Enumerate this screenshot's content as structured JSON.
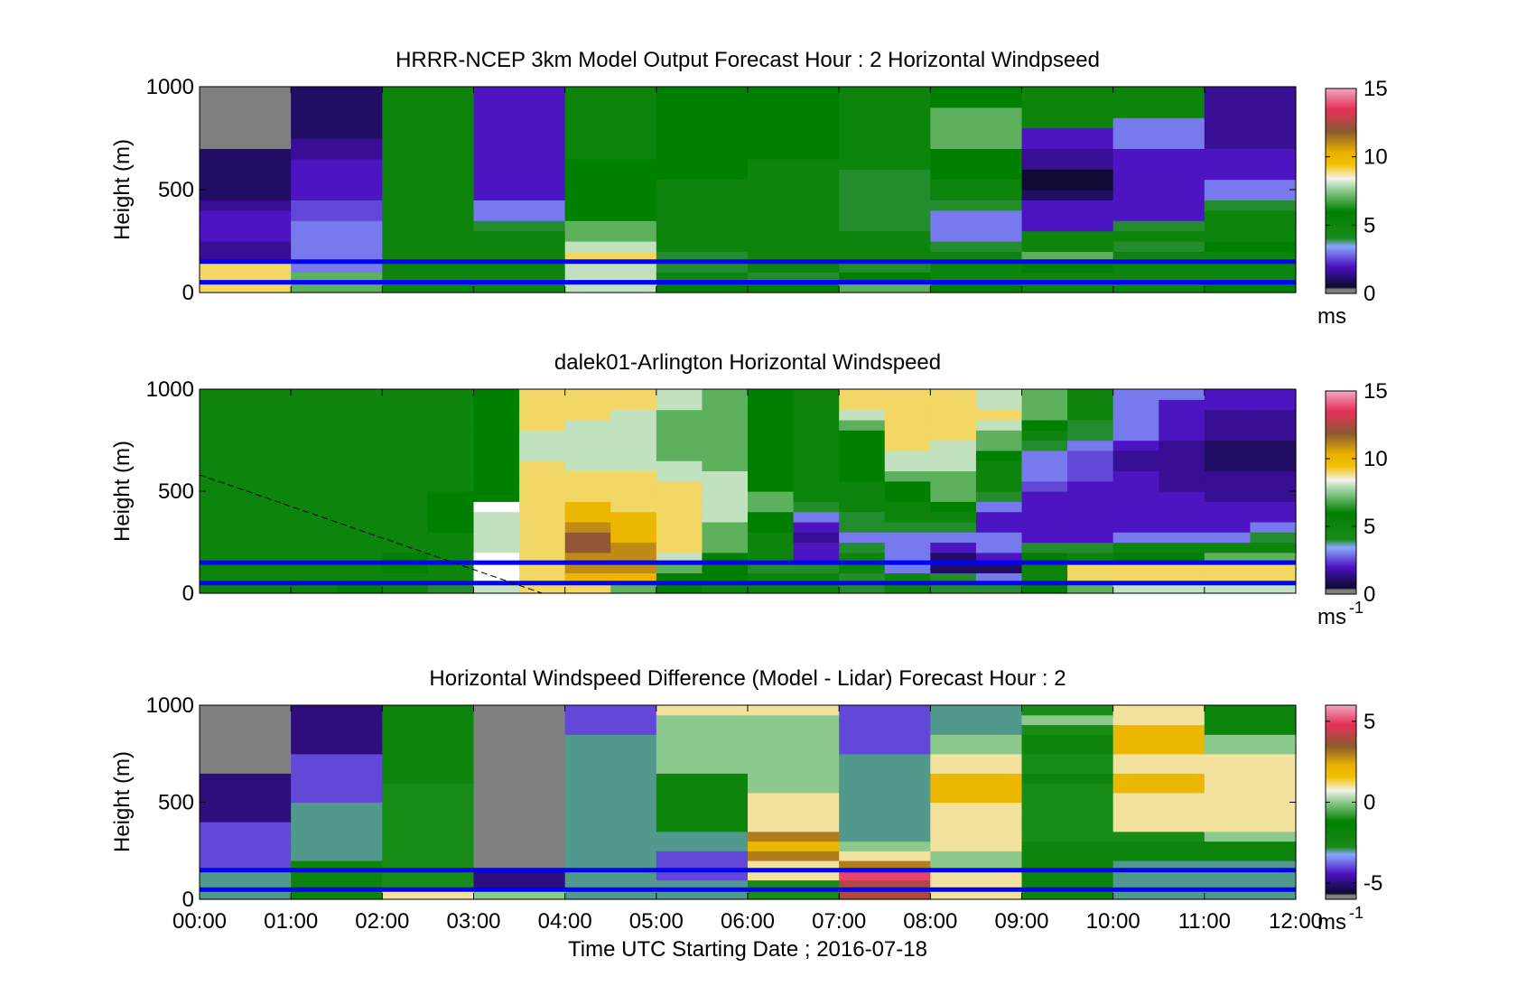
{
  "chart_data": [
    {
      "type": "heatmap",
      "title": "HRRR-NCEP 3km Model Output   Forecast Hour : 2 Horizontal Windpseed",
      "ylabel": "Height (m)",
      "ylim": [
        0,
        1000
      ],
      "yticks": [
        "0",
        "500",
        "1000"
      ],
      "colorbar": {
        "ticks": [
          "0",
          "5",
          "10",
          "15"
        ],
        "unit": "ms",
        "range": [
          0,
          15
        ]
      },
      "overlay_lines": {
        "heights": [
          150,
          50
        ],
        "color": "#0000ff"
      },
      "dashed_line": null,
      "heights": [
        25,
        75,
        125,
        175,
        225,
        275,
        325,
        375,
        425,
        475,
        525,
        575,
        625,
        675,
        725,
        775,
        825,
        875,
        925,
        975
      ],
      "times": [
        "00:00",
        "01:00",
        "02:00",
        "03:00",
        "04:00",
        "05:00",
        "06:00",
        "07:00",
        "08:00",
        "09:00",
        "10:00",
        "11:00"
      ],
      "values": [
        [
          9,
          7,
          5,
          5,
          8,
          6,
          6,
          7,
          6,
          5,
          5,
          6
        ],
        [
          9,
          7,
          5,
          5,
          8,
          5,
          4,
          6,
          5,
          5,
          5,
          5
        ],
        [
          9,
          3,
          5,
          5,
          8,
          4,
          5,
          4,
          5,
          6,
          5,
          5
        ],
        [
          1.5,
          3,
          5,
          5,
          9,
          4,
          5,
          5,
          5,
          7,
          5,
          5
        ],
        [
          1.5,
          3,
          5,
          5,
          8,
          5,
          5,
          5,
          4,
          5,
          4,
          6
        ],
        [
          2,
          3,
          5,
          5,
          7,
          5,
          5,
          5,
          3,
          5,
          5,
          5
        ],
        [
          2,
          3,
          5,
          4,
          7,
          5,
          5,
          4,
          3,
          2,
          4,
          5
        ],
        [
          2,
          2.5,
          5,
          3,
          6,
          5,
          5,
          4,
          3,
          2,
          2,
          5
        ],
        [
          1.5,
          2.5,
          5,
          3,
          6,
          5,
          5,
          4,
          4,
          2,
          2,
          4
        ],
        [
          1,
          2,
          5,
          2,
          6,
          5,
          5,
          4,
          5,
          1,
          2,
          3
        ],
        [
          1,
          2,
          5,
          2,
          6,
          5,
          5,
          4,
          5,
          0.5,
          2,
          3
        ],
        [
          1,
          2,
          5,
          2,
          6,
          6,
          5,
          4,
          6,
          0.5,
          2,
          2
        ],
        [
          1,
          2,
          5,
          2,
          6,
          6,
          5,
          5,
          6,
          1.5,
          2,
          2
        ],
        [
          1,
          1.5,
          5,
          2,
          5,
          6,
          6,
          5,
          6,
          1.5,
          2,
          2
        ],
        [
          -1,
          1.5,
          5,
          2,
          5,
          6,
          6,
          5,
          7,
          2,
          3,
          1.5
        ],
        [
          -1,
          1,
          5,
          2,
          5,
          6,
          6,
          5,
          7,
          2,
          3,
          1.5
        ],
        [
          -1,
          1,
          5,
          2,
          5,
          6,
          6,
          5,
          7,
          5,
          3,
          1.5
        ],
        [
          -1,
          1,
          5,
          2,
          5,
          6,
          6,
          5,
          7,
          5,
          5,
          1.5
        ],
        [
          -1,
          1,
          5,
          2,
          5,
          6,
          6,
          5,
          6,
          5,
          5,
          1.5
        ],
        [
          -1,
          1,
          5,
          2,
          5,
          6,
          6,
          5,
          6,
          5,
          5,
          1.5
        ]
      ]
    },
    {
      "type": "heatmap",
      "title": "dalek01-Arlington  Horizontal Windspeed",
      "ylabel": "Height (m)",
      "ylim": [
        0,
        1000
      ],
      "yticks": [
        "0",
        "500",
        "1000"
      ],
      "colorbar": {
        "ticks": [
          "0",
          "5",
          "10",
          "15"
        ],
        "unit": "ms",
        "unit_exp": "-1",
        "range": [
          0,
          15
        ]
      },
      "overlay_lines": {
        "heights": [
          150,
          50
        ],
        "color": "#0000ff"
      },
      "dashed_line": {
        "from": [
          "00:00",
          580
        ],
        "to": [
          "03:45",
          0
        ]
      },
      "heights": [
        25,
        75,
        125,
        175,
        225,
        275,
        325,
        375,
        425,
        475,
        525,
        575,
        625,
        675,
        725,
        775,
        825,
        875,
        925,
        975
      ],
      "times": [
        "00:00",
        "00:30",
        "01:00",
        "01:30",
        "02:00",
        "02:30",
        "03:00",
        "03:30",
        "04:00",
        "04:30",
        "05:00",
        "05:30",
        "06:00",
        "06:30",
        "07:00",
        "07:30",
        "08:00",
        "08:30",
        "09:00",
        "09:30",
        "10:00",
        "10:30",
        "11:00",
        "11:30"
      ],
      "values": [
        [
          5,
          5,
          5,
          6,
          5,
          4,
          8,
          9,
          9,
          7,
          6,
          5,
          5,
          5,
          4,
          5,
          4,
          4,
          6,
          7,
          8,
          8,
          8,
          8
        ],
        [
          5,
          5,
          5,
          5,
          5,
          5,
          -2,
          9,
          10,
          10,
          6,
          6,
          5,
          5,
          4,
          5,
          4,
          3,
          5,
          9,
          9,
          9,
          9,
          9
        ],
        [
          5,
          5,
          5,
          5,
          6,
          5,
          -2,
          9,
          11,
          11,
          7,
          6,
          4,
          4,
          5,
          3,
          1,
          1,
          5,
          9,
          9,
          9,
          9,
          9
        ],
        [
          5,
          5,
          5,
          5,
          6,
          5,
          -2,
          9,
          11,
          11,
          8,
          6,
          5,
          2,
          5,
          3,
          1,
          2,
          6,
          5,
          6,
          6,
          7,
          7
        ],
        [
          5,
          5,
          5,
          5,
          5,
          5,
          8,
          9,
          12,
          11,
          9,
          7,
          5,
          2,
          4,
          3,
          2,
          3,
          4,
          4,
          5,
          5,
          5,
          5
        ],
        [
          5,
          5,
          5,
          5,
          5,
          5,
          8,
          9,
          12,
          10,
          9,
          7,
          5,
          1.5,
          3,
          3,
          3,
          3,
          2,
          2,
          3,
          3,
          3,
          4
        ],
        [
          5,
          5,
          5,
          5,
          5,
          6,
          8,
          9,
          11,
          10,
          9,
          7,
          6,
          2,
          4,
          4,
          4,
          2,
          2,
          2,
          2,
          2,
          2,
          3
        ],
        [
          5,
          5,
          5,
          5,
          5,
          6,
          8,
          9,
          10,
          10,
          9,
          8,
          6,
          3,
          4,
          5,
          5,
          2,
          2,
          2,
          2,
          2,
          2,
          2
        ],
        [
          5,
          5,
          5,
          5,
          5,
          6,
          -2,
          9,
          10,
          9,
          9,
          8,
          7,
          4,
          5,
          5,
          6,
          3,
          2,
          2,
          2,
          2,
          2,
          2
        ],
        [
          5,
          5,
          5,
          5,
          5,
          6,
          6,
          9,
          9,
          9,
          9,
          8,
          7,
          5,
          5,
          6,
          7,
          4,
          2,
          2,
          2,
          2,
          1.5,
          1.5
        ],
        [
          5,
          5,
          5,
          5,
          5,
          5,
          6,
          9,
          9,
          9,
          9,
          8,
          6,
          5,
          5,
          6,
          7,
          5,
          2.5,
          2,
          2,
          1.5,
          1.5,
          1.5
        ],
        [
          5,
          5,
          5,
          5,
          5,
          5,
          6,
          9,
          9,
          9,
          8,
          8,
          6,
          5,
          6,
          7,
          7,
          5,
          3,
          2.5,
          2,
          1.5,
          1.5,
          1.5
        ],
        [
          5,
          5,
          5,
          5,
          5,
          5,
          6,
          9,
          8,
          8,
          8,
          7,
          6,
          5,
          6,
          8,
          8,
          5,
          3,
          2.5,
          1.5,
          1.5,
          1,
          1
        ],
        [
          5,
          5,
          5,
          5,
          5,
          5,
          6,
          8,
          8,
          8,
          7,
          7,
          6,
          5,
          6,
          8,
          8,
          6,
          3,
          2.5,
          1.5,
          1.5,
          1,
          1
        ],
        [
          5,
          5,
          5,
          5,
          5,
          5,
          6,
          8,
          8,
          8,
          7,
          7,
          6,
          5,
          6,
          9,
          8,
          7,
          4,
          3,
          2,
          1.5,
          1,
          1
        ],
        [
          5,
          5,
          5,
          5,
          5,
          5,
          6,
          8,
          8,
          8,
          7,
          7,
          6,
          5,
          6,
          9,
          9,
          7,
          5,
          4,
          3,
          2,
          1.5,
          1.5
        ],
        [
          5,
          5,
          5,
          5,
          5,
          5,
          6,
          9,
          8,
          8,
          7,
          7,
          6,
          5,
          7,
          9,
          9,
          8,
          6,
          4,
          3,
          2,
          1.5,
          1.5
        ],
        [
          5,
          5,
          5,
          5,
          5,
          5,
          6,
          9,
          9,
          8,
          7,
          7,
          6,
          5,
          8,
          9,
          9,
          9,
          7,
          5,
          3,
          2,
          1.5,
          1.5
        ],
        [
          5,
          5,
          5,
          5,
          5,
          5,
          6,
          9,
          9,
          9,
          8,
          7,
          6,
          5,
          9,
          9,
          9,
          8,
          7,
          5,
          3,
          2,
          2,
          2
        ],
        [
          5,
          5,
          5,
          5,
          5,
          5,
          6,
          9,
          9,
          9,
          8,
          7,
          6,
          5,
          9,
          9,
          9,
          8,
          7,
          5,
          3,
          3,
          2,
          2
        ]
      ]
    },
    {
      "type": "heatmap",
      "title": "Horizontal Windspeed Difference (Model - Lidar) Forecast Hour : 2",
      "ylabel": "Height (m)",
      "ylim": [
        0,
        1000
      ],
      "yticks": [
        "0",
        "500",
        "1000"
      ],
      "xlabel": "Time UTC  Starting Date ; 2016-07-18",
      "xticks": [
        "00:00",
        "01:00",
        "02:00",
        "03:00",
        "04:00",
        "05:00",
        "06:00",
        "07:00",
        "08:00",
        "09:00",
        "10:00",
        "11:00",
        "12:00"
      ],
      "colorbar": {
        "ticks": [
          "-5",
          "0",
          "5"
        ],
        "unit": "ms",
        "unit_exp": "-1",
        "range": [
          -6,
          6
        ]
      },
      "overlay_lines": {
        "heights": [
          150,
          50
        ],
        "color": "#0000ff"
      },
      "dashed_line": null,
      "heights": [
        25,
        75,
        125,
        175,
        225,
        275,
        325,
        375,
        425,
        475,
        525,
        575,
        625,
        675,
        725,
        775,
        825,
        875,
        925,
        975
      ],
      "times": [
        "00:00",
        "01:00",
        "02:00",
        "03:00",
        "04:00",
        "05:00",
        "06:00",
        "07:00",
        "08:00",
        "09:00",
        "10:00",
        "11:00"
      ],
      "values": [
        [
          -3,
          -2,
          1,
          0,
          -3,
          -3,
          -1,
          4,
          1,
          -2,
          -3,
          -3
        ],
        [
          -3,
          -2,
          -1,
          -5,
          -3,
          -3,
          -1,
          4,
          1,
          -2,
          -3,
          -3
        ],
        [
          -3,
          -2,
          -1,
          -5,
          -3,
          -4,
          1,
          5,
          1,
          -2,
          -3,
          -3
        ],
        [
          -4,
          -2,
          -1,
          -6,
          -3,
          -4,
          1,
          3,
          0,
          -2,
          -3,
          -3
        ],
        [
          -4,
          -3,
          -1,
          -6,
          -3,
          -4,
          3,
          1,
          0,
          -2,
          -2,
          -2
        ],
        [
          -4,
          -3,
          -1,
          -6,
          -3,
          -3,
          2,
          0,
          1,
          -2,
          -2,
          -2
        ],
        [
          -4,
          -3,
          -1,
          -6,
          -3,
          -3,
          3,
          -3,
          1,
          -1,
          -1,
          0
        ],
        [
          -4,
          -3,
          -1,
          -6,
          -3,
          -2,
          1,
          -3,
          1,
          -1,
          1,
          1
        ],
        [
          -5,
          -3,
          -1,
          -6,
          -3,
          -2,
          1,
          -3,
          1,
          -1,
          1,
          1
        ],
        [
          -5,
          -3,
          -1,
          -6,
          -3,
          -2,
          1,
          -3,
          1,
          -1,
          1,
          1
        ],
        [
          -5,
          -4,
          -1,
          -6,
          -3,
          -2,
          1,
          -3,
          2,
          -1,
          1,
          1
        ],
        [
          -5,
          -4,
          -1,
          -6,
          -3,
          -2,
          0,
          -3,
          2,
          -1,
          2,
          1
        ],
        [
          -5,
          -4,
          -2,
          -6,
          -3,
          -2,
          0,
          -3,
          2,
          -2,
          2,
          1
        ],
        [
          -6,
          -4,
          -2,
          -6,
          -3,
          0,
          0,
          -3,
          1,
          -1,
          1,
          1
        ],
        [
          -6,
          -4,
          -2,
          -6,
          -3,
          0,
          0,
          -3,
          1,
          -1,
          1,
          1
        ],
        [
          -6,
          -5,
          -2,
          -6,
          -3,
          0,
          0,
          -4,
          0,
          -2,
          2,
          0
        ],
        [
          -6,
          -5,
          -2,
          -6,
          -3,
          0,
          0,
          -4,
          0,
          -2,
          2,
          0
        ],
        [
          -6,
          -5,
          -2,
          -6,
          -4,
          0,
          0,
          -4,
          -3,
          -1,
          2,
          -2
        ],
        [
          -6,
          -5,
          -2,
          -6,
          -4,
          0,
          0,
          -4,
          -3,
          0,
          1,
          -2
        ],
        [
          -6,
          -5,
          -2,
          -6,
          -4,
          1,
          1,
          -4,
          -3,
          -1,
          1,
          -2
        ]
      ]
    }
  ]
}
